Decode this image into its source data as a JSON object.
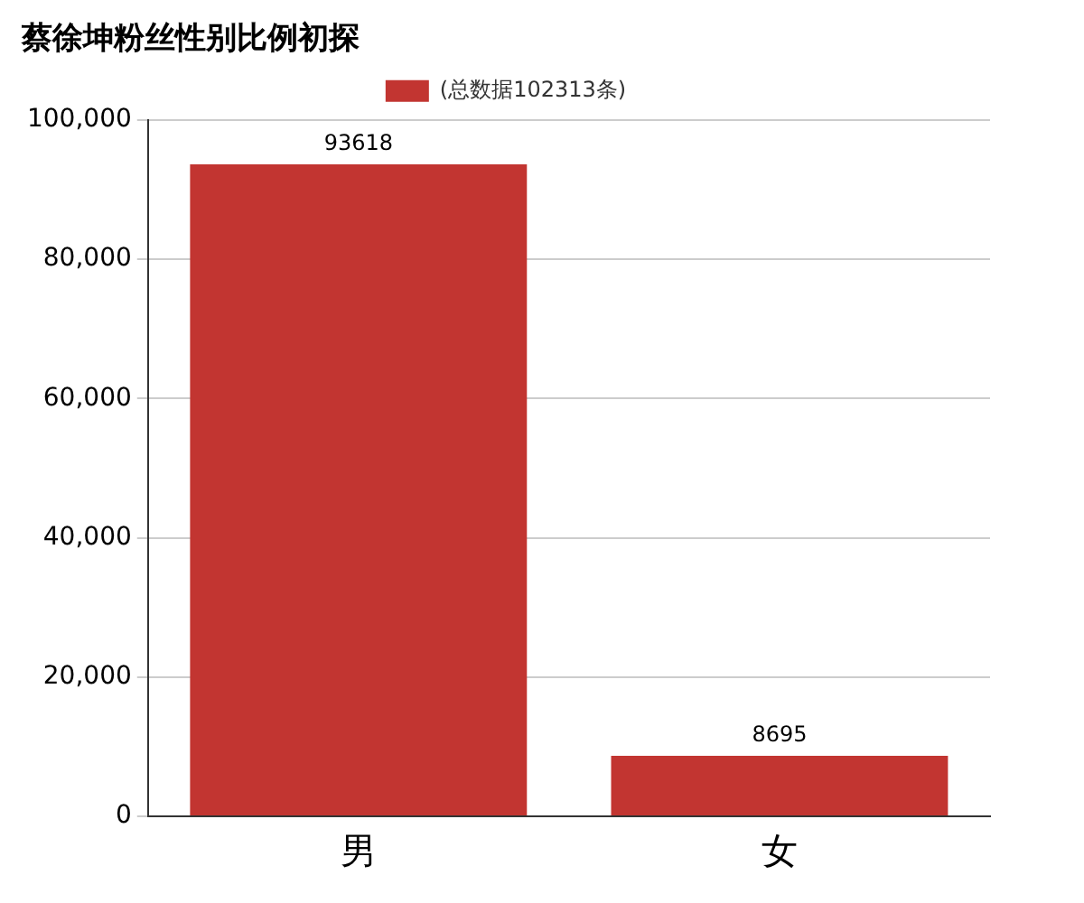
{
  "chart_data": {
    "type": "bar",
    "title": "蔡徐坤粉丝性别比例初探",
    "categories": [
      "男",
      "女"
    ],
    "series": [
      {
        "name": "(总数据102313条)",
        "color": "#c23531",
        "values": [
          93618,
          8695
        ]
      }
    ],
    "ylim": [
      0,
      100000
    ],
    "yticks": [
      0,
      {
        "value": 20000,
        "label": "20,000"
      },
      {
        "value": 40000,
        "label": "40,000"
      },
      {
        "value": 60000,
        "label": "60,000"
      },
      {
        "value": 80000,
        "label": "80,000"
      },
      {
        "value": 100000,
        "label": "100,000"
      }
    ],
    "grid": "y",
    "legend": "top",
    "data_labels": true
  }
}
